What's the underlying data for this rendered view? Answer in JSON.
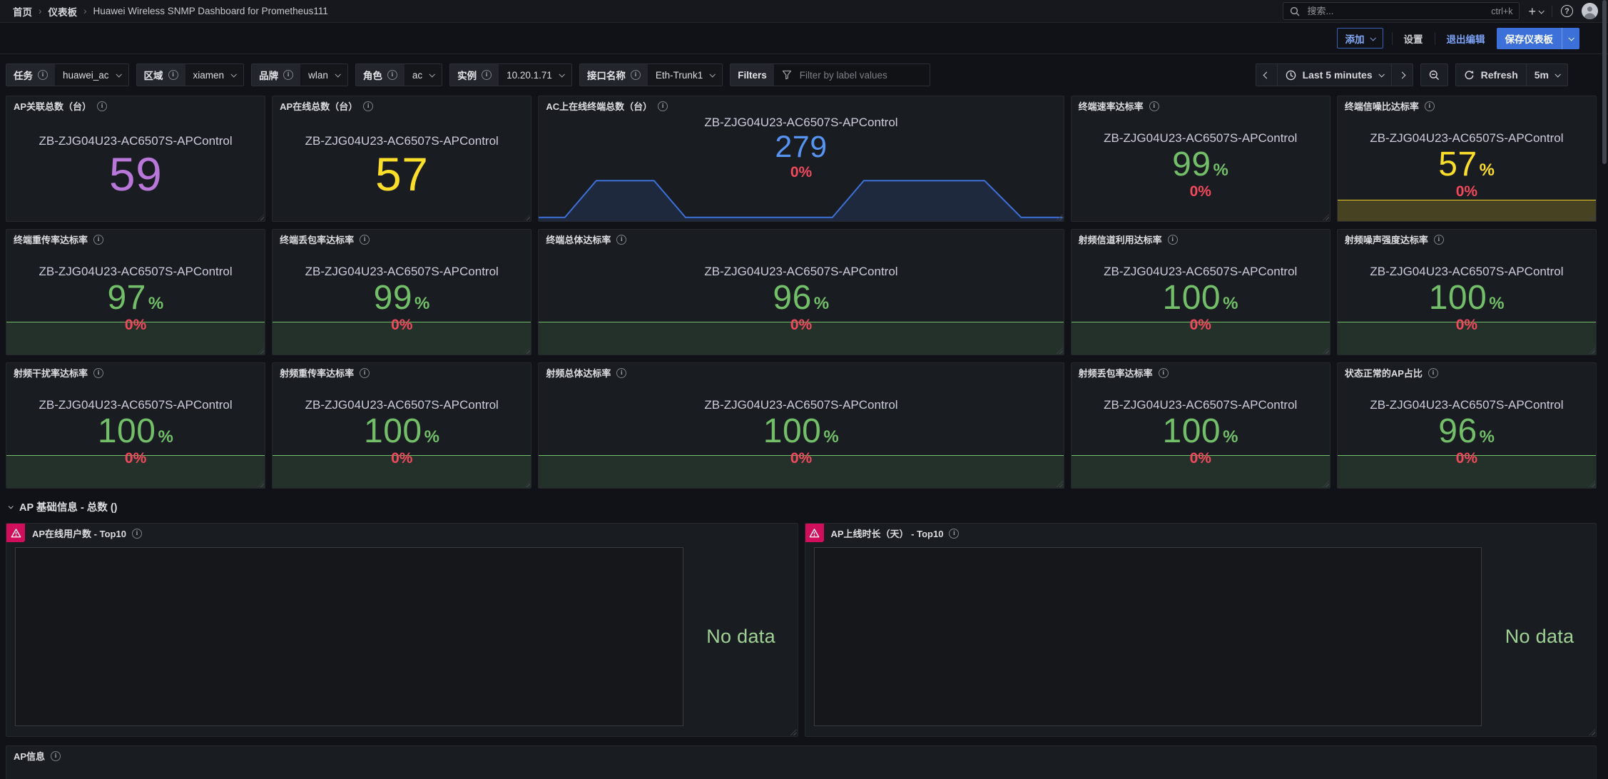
{
  "colors": {
    "purple": "#b877d9",
    "yellow": "#fade2a",
    "blue": "#5794f2",
    "green": "#73bf69",
    "red": "#f2495c",
    "badge_error": "#d10e5c",
    "primary_button": "#3d71d9",
    "area_line": "#3d71d9",
    "band_green_line": "#73bf69",
    "band_yellow_line": "#e7cf2a"
  },
  "nav": {
    "breadcrumb": [
      "首页",
      "仪表板",
      "Huawei Wireless SNMP Dashboard for Prometheus111"
    ],
    "separator": "›",
    "search_placeholder": "搜索...",
    "search_shortcut": "ctrl+k"
  },
  "editbar": {
    "add": "添加",
    "settings": "设置",
    "exit_edit": "退出编辑",
    "save": "保存仪表板"
  },
  "filterbar": {
    "variables": [
      {
        "label": "任务",
        "value": "huawei_ac"
      },
      {
        "label": "区域",
        "value": "xiamen"
      },
      {
        "label": "品牌",
        "value": "wlan"
      },
      {
        "label": "角色",
        "value": "ac"
      },
      {
        "label": "实例",
        "value": "10.20.1.71"
      },
      {
        "label": "接口名称",
        "value": "Eth-Trunk1"
      }
    ],
    "adhoc_label": "Filters",
    "adhoc_placeholder": "Filter by label values"
  },
  "timebar": {
    "range": "Last 5 minutes",
    "refresh": "Refresh",
    "interval": "5m"
  },
  "device_label": "ZB-ZJG04U23-AC6507S-APControl",
  "stat_rows": [
    {
      "panels": [
        {
          "title": "AP关联总数（台）",
          "value": "59",
          "color": "purple",
          "size": "xl",
          "span": 1
        },
        {
          "title": "AP在线总数（台）",
          "value": "57",
          "color": "yellow",
          "size": "xl",
          "span": 1
        },
        {
          "title": "AC上在线终端总数（台）",
          "value": "279",
          "color": "blue",
          "sub": "0%",
          "size": "md",
          "span": 2,
          "chart": "area",
          "points": [
            [
              0,
              2
            ],
            [
              5,
              2
            ],
            [
              11,
              88
            ],
            [
              22,
              88
            ],
            [
              28,
              2
            ],
            [
              56,
              2
            ],
            [
              62,
              88
            ],
            [
              85,
              88
            ],
            [
              92,
              2
            ],
            [
              100,
              2
            ]
          ]
        },
        {
          "title": "终端速率达标率",
          "value": "99",
          "suffix": "%",
          "color": "green",
          "sub": "0%",
          "size": "lg",
          "span": 1
        },
        {
          "title": "终端信噪比达标率",
          "value": "57",
          "suffix": "%",
          "color": "yellow",
          "sub": "0%",
          "size": "lg",
          "span": 1,
          "band": "yellow",
          "band_h": 30
        }
      ]
    },
    {
      "panels": [
        {
          "title": "终端重传率达标率",
          "value": "97",
          "suffix": "%",
          "color": "green",
          "sub": "0%",
          "size": "lg",
          "span": 1,
          "band": "green",
          "band_h": 46
        },
        {
          "title": "终端丢包率达标率",
          "value": "99",
          "suffix": "%",
          "color": "green",
          "sub": "0%",
          "size": "lg",
          "span": 1,
          "band": "green",
          "band_h": 46
        },
        {
          "title": "终端总体达标率",
          "value": "96",
          "suffix": "%",
          "color": "green",
          "sub": "0%",
          "size": "lg",
          "span": 2,
          "band": "green",
          "band_h": 46
        },
        {
          "title": "射频信道利用达标率",
          "value": "100",
          "suffix": "%",
          "color": "green",
          "sub": "0%",
          "size": "lg",
          "span": 1,
          "band": "green",
          "band_h": 46
        },
        {
          "title": "射频噪声强度达标率",
          "value": "100",
          "suffix": "%",
          "color": "green",
          "sub": "0%",
          "size": "lg",
          "span": 1,
          "band": "green",
          "band_h": 46
        }
      ]
    },
    {
      "panels": [
        {
          "title": "射频干扰率达标率",
          "value": "100",
          "suffix": "%",
          "color": "green",
          "sub": "0%",
          "size": "lg",
          "span": 1,
          "band": "green",
          "band_h": 46
        },
        {
          "title": "射频重传率达标率",
          "value": "100",
          "suffix": "%",
          "color": "green",
          "sub": "0%",
          "size": "lg",
          "span": 1,
          "band": "green",
          "band_h": 46
        },
        {
          "title": "射频总体达标率",
          "value": "100",
          "suffix": "%",
          "color": "green",
          "sub": "0%",
          "size": "lg",
          "span": 2,
          "band": "green",
          "band_h": 46
        },
        {
          "title": "射频丢包率达标率",
          "value": "100",
          "suffix": "%",
          "color": "green",
          "sub": "0%",
          "size": "lg",
          "span": 1,
          "band": "green",
          "band_h": 46
        },
        {
          "title": "状态正常的AP占比",
          "value": "96",
          "suffix": "%",
          "color": "green",
          "sub": "0%",
          "size": "lg",
          "span": 1,
          "band": "green",
          "band_h": 46
        }
      ]
    }
  ],
  "section": {
    "title": "AP 基础信息 - 总数 ()"
  },
  "bottom_panels": [
    {
      "title": "AP在线用户数 - Top10",
      "status": "No data"
    },
    {
      "title": "AP上线时长（天） - Top10",
      "status": "No data"
    }
  ],
  "footer_panel": {
    "title": "AP信息"
  }
}
